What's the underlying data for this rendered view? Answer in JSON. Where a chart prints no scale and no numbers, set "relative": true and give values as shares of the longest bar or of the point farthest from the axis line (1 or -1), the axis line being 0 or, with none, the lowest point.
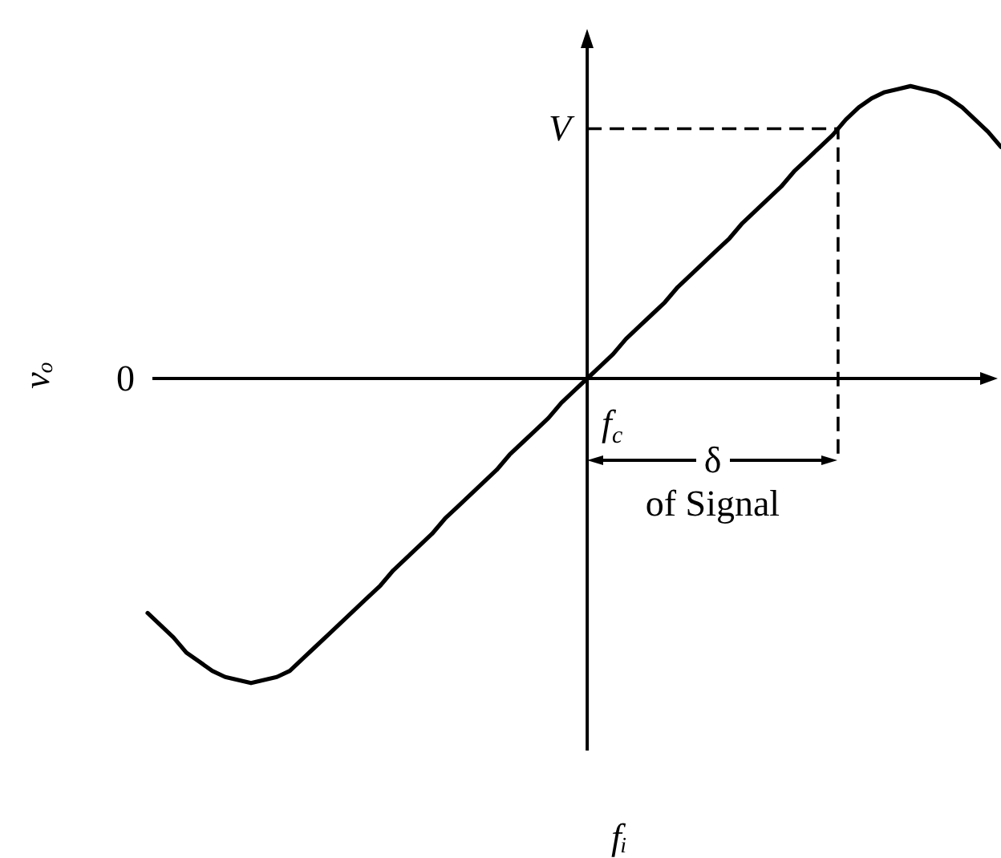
{
  "chart_data": {
    "type": "line",
    "relative": true,
    "xlabel": "fᵢ",
    "ylabel": "vₒ",
    "categories": [
      null,
      null,
      null,
      null,
      null,
      null,
      null,
      null,
      null,
      null,
      null,
      null,
      null,
      null,
      null,
      null,
      null,
      null,
      null,
      null,
      null,
      null,
      null,
      null,
      null,
      null,
      null,
      null,
      null,
      null,
      null,
      null,
      null,
      null,
      null,
      null,
      null,
      null,
      null,
      null,
      null,
      null,
      null,
      null,
      null,
      null,
      null,
      null,
      null,
      null,
      null,
      null,
      null,
      null,
      null,
      null,
      null,
      null,
      null,
      null,
      null,
      null,
      null,
      null,
      null,
      null,
      null
    ],
    "values": [
      -0.77,
      -0.81,
      -0.85,
      -0.9,
      -0.93,
      -0.96,
      -0.98,
      -0.99,
      -1,
      -0.99,
      -0.98,
      -0.96,
      -0.92,
      -0.88,
      -0.84,
      -0.8,
      -0.76,
      -0.72,
      -0.68,
      -0.63,
      -0.59,
      -0.55,
      -0.51,
      -0.46,
      -0.42,
      -0.38,
      -0.34,
      -0.3,
      -0.25,
      -0.21,
      -0.17,
      -0.13,
      -0.08,
      -0.04,
      0,
      0.04,
      0.08,
      0.13,
      0.17,
      0.21,
      0.25,
      0.3,
      0.34,
      0.38,
      0.42,
      0.46,
      0.51,
      0.55,
      0.59,
      0.63,
      0.68,
      0.72,
      0.76,
      0.8,
      0.85,
      0.89,
      0.92,
      0.94,
      0.95,
      0.96,
      0.95,
      0.94,
      0.92,
      0.89,
      0.85,
      0.81,
      0.76
    ],
    "color": "#000000",
    "ref_lines": [
      {
        "axis": "y",
        "value": 0.82,
        "label": "V",
        "line_style": "dashed"
      }
    ],
    "annotations": [
      "0",
      "f$_{c}$",
      "δ",
      "of Signal"
    ]
  }
}
